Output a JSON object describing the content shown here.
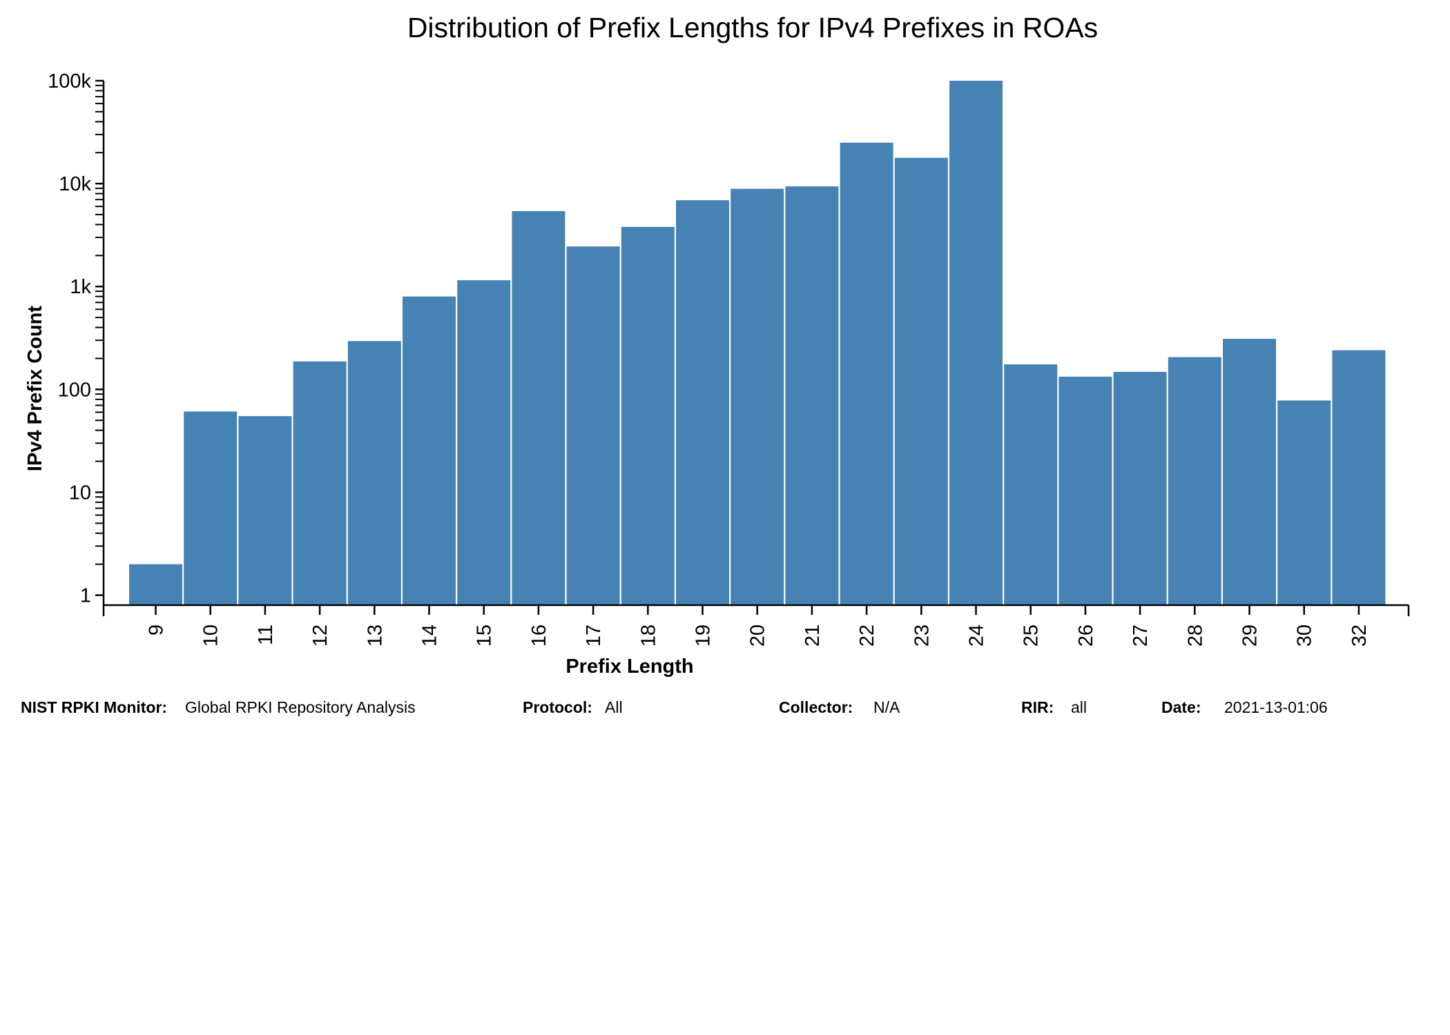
{
  "chart_data": {
    "type": "bar",
    "title": "Distribution of Prefix Lengths for IPv4 Prefixes in ROAs",
    "xlabel": "Prefix Length",
    "ylabel": "IPv4 Prefix Count",
    "yscale": "log",
    "ylim": [
      0.8,
      100000
    ],
    "y_ticks": [
      {
        "value": 1,
        "label": "1"
      },
      {
        "value": 10,
        "label": "10"
      },
      {
        "value": 100,
        "label": "100"
      },
      {
        "value": 1000,
        "label": "1k"
      },
      {
        "value": 10000,
        "label": "10k"
      },
      {
        "value": 100000,
        "label": "100k"
      }
    ],
    "categories": [
      "9",
      "10",
      "11",
      "12",
      "13",
      "14",
      "15",
      "16",
      "17",
      "18",
      "19",
      "20",
      "21",
      "22",
      "23",
      "24",
      "25",
      "26",
      "27",
      "28",
      "29",
      "30",
      "32"
    ],
    "values": [
      2,
      61,
      55,
      187,
      295,
      800,
      1150,
      5400,
      2450,
      3800,
      6900,
      8900,
      9400,
      25000,
      17800,
      100000,
      175,
      133,
      148,
      206,
      310,
      78,
      240
    ],
    "bar_color": "#4682b4",
    "grid": false,
    "legend": "none"
  },
  "footer": {
    "monitor_label": "NIST RPKI Monitor:",
    "monitor_value": "Global RPKI Repository Analysis",
    "protocol_label": "Protocol:",
    "protocol_value": "All",
    "collector_label": "Collector:",
    "collector_value": "N/A",
    "rir_label": "RIR:",
    "rir_value": "all",
    "date_label": "Date:",
    "date_value": "2021-13-01:06"
  }
}
